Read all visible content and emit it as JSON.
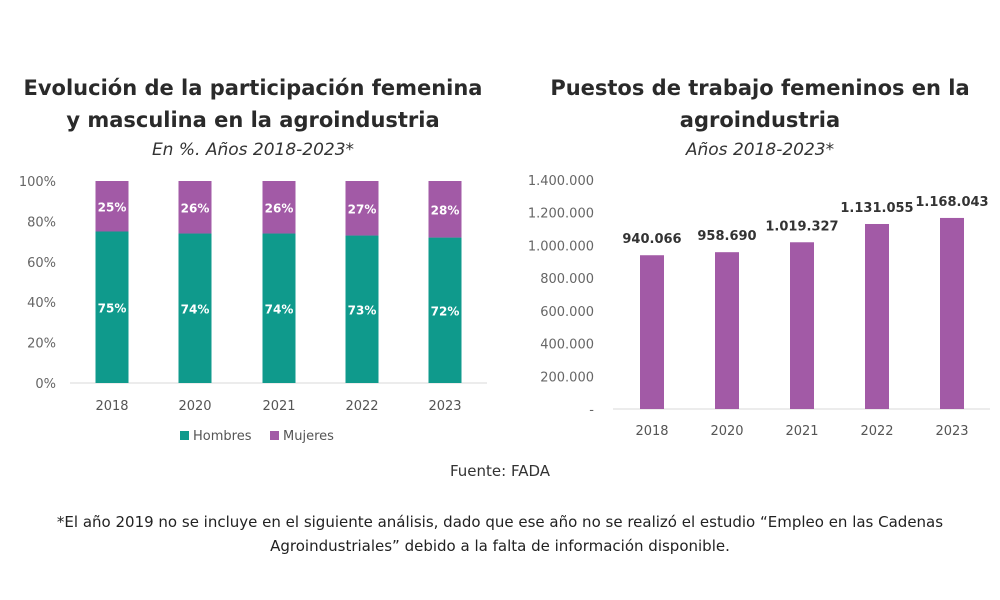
{
  "footer": {
    "source": "Fuente: FADA",
    "note": "*El año 2019 no se incluye en el siguiente análisis, dado que ese año no se realizó el estudio “Empleo en las Cadenas Agroindustriales” debido a la falta de información disponible."
  },
  "chart_data": [
    {
      "type": "bar",
      "stacked": true,
      "title": "Evolución de la participación femenina y masculina en la agroindustria",
      "subtitle": "En %. Años 2018-2023*",
      "categories": [
        "2018",
        "2020",
        "2021",
        "2022",
        "2023"
      ],
      "series": [
        {
          "name": "Hombres",
          "values": [
            75,
            74,
            74,
            73,
            72
          ],
          "color": "#0f9a8c"
        },
        {
          "name": "Mujeres",
          "values": [
            25,
            26,
            26,
            27,
            28
          ],
          "color": "#a25aa6"
        }
      ],
      "ylim": [
        0,
        100
      ],
      "yticks": [
        "0%",
        "20%",
        "40%",
        "60%",
        "80%",
        "100%"
      ],
      "legend": "bottom",
      "grid": false
    },
    {
      "type": "bar",
      "title": "Puestos de trabajo femeninos en la agroindustria",
      "subtitle": "Años 2018-2023*",
      "categories": [
        "2018",
        "2020",
        "2021",
        "2022",
        "2023"
      ],
      "values": [
        940066,
        958690,
        1019327,
        1131055,
        1168043
      ],
      "labels": [
        "940.066",
        "958.690",
        "1.019.327",
        "1.131.055",
        "1.168.043"
      ],
      "color": "#a25aa6",
      "ylim": [
        0,
        1400000
      ],
      "yticks": [
        "-",
        "200.000",
        "400.000",
        "600.000",
        "800.000",
        "1.000.000",
        "1.200.000",
        "1.400.000"
      ],
      "grid": false
    }
  ]
}
